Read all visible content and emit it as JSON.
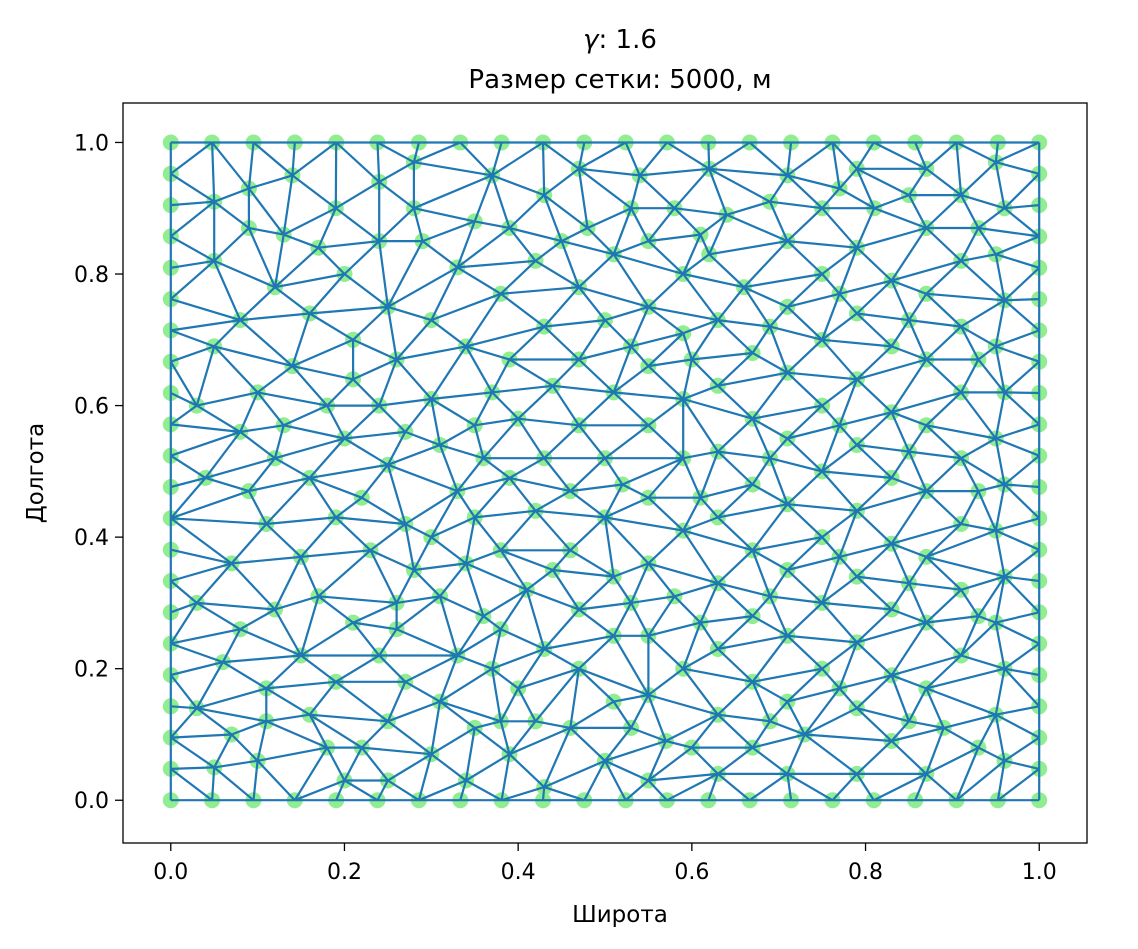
{
  "chart_data": {
    "type": "scatter",
    "title_symbol": "γ",
    "title_line1": ": 1.6",
    "title_line2": "Размер сетки: 5000, м",
    "xlabel": "Широта",
    "ylabel": "Долгота",
    "xlim": [
      -0.055,
      1.055
    ],
    "ylim": [
      -0.065,
      1.06
    ],
    "x_ticks": [
      0.0,
      0.2,
      0.4,
      0.6,
      0.8,
      1.0
    ],
    "x_tick_labels": [
      "0.0",
      "0.2",
      "0.4",
      "0.6",
      "0.8",
      "1.0"
    ],
    "y_ticks": [
      0.0,
      0.2,
      0.4,
      0.6,
      0.8,
      1.0
    ],
    "y_tick_labels": [
      "0.0",
      "0.2",
      "0.4",
      "0.6",
      "0.8",
      "1.0"
    ],
    "grid": false,
    "legend": "none",
    "colors": {
      "nodes": "#90ee90",
      "mesh": "#1f77b4"
    },
    "boundary_nodes_per_side": 22,
    "points": [
      [
        0.05,
        0.91
      ],
      [
        0.09,
        0.87
      ],
      [
        0.13,
        0.86
      ],
      [
        0.08,
        0.73
      ],
      [
        0.12,
        0.78
      ],
      [
        0.16,
        0.74
      ],
      [
        0.05,
        0.69
      ],
      [
        0.1,
        0.62
      ],
      [
        0.03,
        0.6
      ],
      [
        0.08,
        0.56
      ],
      [
        0.12,
        0.52
      ],
      [
        0.16,
        0.49
      ],
      [
        0.04,
        0.49
      ],
      [
        0.09,
        0.47
      ],
      [
        0.07,
        0.36
      ],
      [
        0.11,
        0.42
      ],
      [
        0.15,
        0.37
      ],
      [
        0.19,
        0.43
      ],
      [
        0.03,
        0.3
      ],
      [
        0.08,
        0.26
      ],
      [
        0.12,
        0.29
      ],
      [
        0.17,
        0.31
      ],
      [
        0.06,
        0.21
      ],
      [
        0.11,
        0.17
      ],
      [
        0.15,
        0.22
      ],
      [
        0.03,
        0.14
      ],
      [
        0.07,
        0.1
      ],
      [
        0.11,
        0.12
      ],
      [
        0.16,
        0.13
      ],
      [
        0.05,
        0.05
      ],
      [
        0.1,
        0.06
      ],
      [
        0.2,
        0.03
      ],
      [
        0.22,
        0.08
      ],
      [
        0.25,
        0.12
      ],
      [
        0.27,
        0.18
      ],
      [
        0.24,
        0.22
      ],
      [
        0.21,
        0.27
      ],
      [
        0.26,
        0.3
      ],
      [
        0.28,
        0.35
      ],
      [
        0.23,
        0.38
      ],
      [
        0.27,
        0.42
      ],
      [
        0.22,
        0.46
      ],
      [
        0.25,
        0.51
      ],
      [
        0.2,
        0.55
      ],
      [
        0.24,
        0.6
      ],
      [
        0.21,
        0.64
      ],
      [
        0.26,
        0.67
      ],
      [
        0.21,
        0.7
      ],
      [
        0.25,
        0.75
      ],
      [
        0.2,
        0.8
      ],
      [
        0.24,
        0.85
      ],
      [
        0.19,
        0.9
      ],
      [
        0.24,
        0.94
      ],
      [
        0.28,
        0.97
      ],
      [
        0.29,
        0.85
      ],
      [
        0.33,
        0.81
      ],
      [
        0.3,
        0.73
      ],
      [
        0.34,
        0.69
      ],
      [
        0.3,
        0.61
      ],
      [
        0.35,
        0.57
      ],
      [
        0.31,
        0.54
      ],
      [
        0.33,
        0.47
      ],
      [
        0.3,
        0.4
      ],
      [
        0.34,
        0.36
      ],
      [
        0.31,
        0.31
      ],
      [
        0.36,
        0.28
      ],
      [
        0.33,
        0.22
      ],
      [
        0.31,
        0.15
      ],
      [
        0.35,
        0.11
      ],
      [
        0.3,
        0.07
      ],
      [
        0.34,
        0.03
      ],
      [
        0.39,
        0.07
      ],
      [
        0.42,
        0.12
      ],
      [
        0.4,
        0.17
      ],
      [
        0.43,
        0.23
      ],
      [
        0.38,
        0.26
      ],
      [
        0.41,
        0.32
      ],
      [
        0.38,
        0.38
      ],
      [
        0.42,
        0.44
      ],
      [
        0.39,
        0.49
      ],
      [
        0.43,
        0.52
      ],
      [
        0.4,
        0.58
      ],
      [
        0.44,
        0.63
      ],
      [
        0.39,
        0.67
      ],
      [
        0.43,
        0.72
      ],
      [
        0.38,
        0.77
      ],
      [
        0.42,
        0.82
      ],
      [
        0.39,
        0.87
      ],
      [
        0.43,
        0.92
      ],
      [
        0.37,
        0.95
      ],
      [
        0.47,
        0.96
      ],
      [
        0.48,
        0.87
      ],
      [
        0.51,
        0.83
      ],
      [
        0.47,
        0.78
      ],
      [
        0.5,
        0.73
      ],
      [
        0.47,
        0.67
      ],
      [
        0.51,
        0.62
      ],
      [
        0.47,
        0.57
      ],
      [
        0.5,
        0.52
      ],
      [
        0.46,
        0.47
      ],
      [
        0.5,
        0.43
      ],
      [
        0.46,
        0.38
      ],
      [
        0.51,
        0.34
      ],
      [
        0.47,
        0.29
      ],
      [
        0.51,
        0.25
      ],
      [
        0.47,
        0.2
      ],
      [
        0.51,
        0.15
      ],
      [
        0.46,
        0.11
      ],
      [
        0.5,
        0.06
      ],
      [
        0.43,
        0.02
      ],
      [
        0.55,
        0.03
      ],
      [
        0.57,
        0.09
      ],
      [
        0.55,
        0.16
      ],
      [
        0.59,
        0.2
      ],
      [
        0.55,
        0.25
      ],
      [
        0.58,
        0.31
      ],
      [
        0.55,
        0.36
      ],
      [
        0.59,
        0.41
      ],
      [
        0.55,
        0.46
      ],
      [
        0.59,
        0.52
      ],
      [
        0.55,
        0.57
      ],
      [
        0.59,
        0.61
      ],
      [
        0.55,
        0.66
      ],
      [
        0.59,
        0.71
      ],
      [
        0.55,
        0.75
      ],
      [
        0.59,
        0.8
      ],
      [
        0.55,
        0.85
      ],
      [
        0.58,
        0.9
      ],
      [
        0.54,
        0.95
      ],
      [
        0.62,
        0.96
      ],
      [
        0.64,
        0.89
      ],
      [
        0.62,
        0.83
      ],
      [
        0.66,
        0.78
      ],
      [
        0.63,
        0.73
      ],
      [
        0.67,
        0.68
      ],
      [
        0.63,
        0.63
      ],
      [
        0.67,
        0.58
      ],
      [
        0.63,
        0.53
      ],
      [
        0.67,
        0.48
      ],
      [
        0.63,
        0.43
      ],
      [
        0.67,
        0.38
      ],
      [
        0.63,
        0.33
      ],
      [
        0.67,
        0.28
      ],
      [
        0.63,
        0.23
      ],
      [
        0.67,
        0.18
      ],
      [
        0.63,
        0.13
      ],
      [
        0.67,
        0.08
      ],
      [
        0.63,
        0.04
      ],
      [
        0.71,
        0.04
      ],
      [
        0.73,
        0.1
      ],
      [
        0.71,
        0.15
      ],
      [
        0.75,
        0.2
      ],
      [
        0.71,
        0.25
      ],
      [
        0.75,
        0.3
      ],
      [
        0.71,
        0.35
      ],
      [
        0.75,
        0.4
      ],
      [
        0.71,
        0.45
      ],
      [
        0.75,
        0.5
      ],
      [
        0.71,
        0.55
      ],
      [
        0.75,
        0.6
      ],
      [
        0.71,
        0.65
      ],
      [
        0.75,
        0.7
      ],
      [
        0.71,
        0.75
      ],
      [
        0.75,
        0.8
      ],
      [
        0.71,
        0.85
      ],
      [
        0.75,
        0.9
      ],
      [
        0.71,
        0.95
      ],
      [
        0.79,
        0.96
      ],
      [
        0.81,
        0.9
      ],
      [
        0.79,
        0.84
      ],
      [
        0.83,
        0.79
      ],
      [
        0.79,
        0.74
      ],
      [
        0.83,
        0.69
      ],
      [
        0.79,
        0.64
      ],
      [
        0.83,
        0.59
      ],
      [
        0.79,
        0.54
      ],
      [
        0.83,
        0.49
      ],
      [
        0.79,
        0.44
      ],
      [
        0.83,
        0.39
      ],
      [
        0.79,
        0.34
      ],
      [
        0.83,
        0.29
      ],
      [
        0.79,
        0.24
      ],
      [
        0.83,
        0.19
      ],
      [
        0.79,
        0.14
      ],
      [
        0.83,
        0.09
      ],
      [
        0.79,
        0.04
      ],
      [
        0.87,
        0.04
      ],
      [
        0.89,
        0.11
      ],
      [
        0.87,
        0.17
      ],
      [
        0.91,
        0.22
      ],
      [
        0.87,
        0.27
      ],
      [
        0.91,
        0.32
      ],
      [
        0.87,
        0.37
      ],
      [
        0.91,
        0.42
      ],
      [
        0.87,
        0.47
      ],
      [
        0.91,
        0.52
      ],
      [
        0.87,
        0.57
      ],
      [
        0.91,
        0.62
      ],
      [
        0.87,
        0.67
      ],
      [
        0.91,
        0.72
      ],
      [
        0.87,
        0.77
      ],
      [
        0.91,
        0.82
      ],
      [
        0.87,
        0.87
      ],
      [
        0.91,
        0.92
      ],
      [
        0.87,
        0.96
      ],
      [
        0.95,
        0.97
      ],
      [
        0.96,
        0.9
      ],
      [
        0.95,
        0.83
      ],
      [
        0.96,
        0.76
      ],
      [
        0.95,
        0.69
      ],
      [
        0.96,
        0.62
      ],
      [
        0.95,
        0.55
      ],
      [
        0.96,
        0.48
      ],
      [
        0.95,
        0.41
      ],
      [
        0.96,
        0.34
      ],
      [
        0.95,
        0.27
      ],
      [
        0.96,
        0.2
      ],
      [
        0.95,
        0.13
      ],
      [
        0.96,
        0.06
      ],
      [
        0.14,
        0.95
      ],
      [
        0.14,
        0.66
      ],
      [
        0.18,
        0.6
      ],
      [
        0.13,
        0.57
      ],
      [
        0.05,
        0.82
      ],
      [
        0.09,
        0.93
      ],
      [
        0.17,
        0.84
      ],
      [
        0.28,
        0.9
      ],
      [
        0.35,
        0.88
      ],
      [
        0.27,
        0.56
      ],
      [
        0.35,
        0.43
      ],
      [
        0.26,
        0.26
      ],
      [
        0.19,
        0.18
      ],
      [
        0.18,
        0.08
      ],
      [
        0.25,
        0.03
      ],
      [
        0.38,
        0.12
      ],
      [
        0.37,
        0.2
      ],
      [
        0.44,
        0.35
      ],
      [
        0.36,
        0.52
      ],
      [
        0.37,
        0.62
      ],
      [
        0.45,
        0.85
      ],
      [
        0.53,
        0.9
      ],
      [
        0.61,
        0.86
      ],
      [
        0.53,
        0.69
      ],
      [
        0.6,
        0.67
      ],
      [
        0.52,
        0.48
      ],
      [
        0.61,
        0.46
      ],
      [
        0.53,
        0.3
      ],
      [
        0.61,
        0.27
      ],
      [
        0.53,
        0.11
      ],
      [
        0.6,
        0.08
      ],
      [
        0.69,
        0.12
      ],
      [
        0.69,
        0.31
      ],
      [
        0.69,
        0.52
      ],
      [
        0.69,
        0.72
      ],
      [
        0.69,
        0.91
      ],
      [
        0.77,
        0.93
      ],
      [
        0.77,
        0.77
      ],
      [
        0.77,
        0.57
      ],
      [
        0.77,
        0.37
      ],
      [
        0.77,
        0.17
      ],
      [
        0.85,
        0.12
      ],
      [
        0.85,
        0.33
      ],
      [
        0.85,
        0.53
      ],
      [
        0.85,
        0.73
      ],
      [
        0.85,
        0.92
      ],
      [
        0.93,
        0.87
      ],
      [
        0.93,
        0.67
      ],
      [
        0.93,
        0.47
      ],
      [
        0.93,
        0.28
      ],
      [
        0.93,
        0.08
      ]
    ]
  }
}
